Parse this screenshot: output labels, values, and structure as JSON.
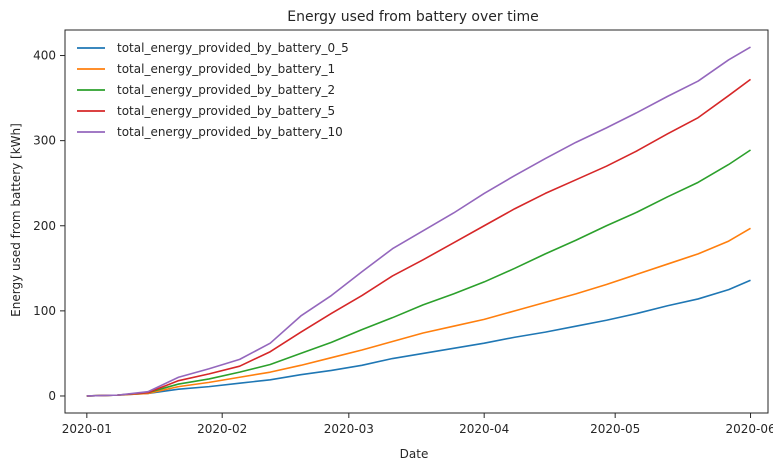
{
  "chart_data": {
    "type": "line",
    "title": "Energy used from battery over time",
    "xlabel": "Date",
    "ylabel": "Energy used from battery [kWh]",
    "x_ticks": [
      "2020-01",
      "2020-02",
      "2020-03",
      "2020-04",
      "2020-05",
      "2020-06"
    ],
    "y_ticks": [
      0,
      100,
      200,
      300,
      400
    ],
    "xlim": [
      "2019-12-27",
      "2020-06-05"
    ],
    "ylim": [
      -20,
      430
    ],
    "grid": false,
    "legend_position": "top-left",
    "x": [
      "2020-01-01",
      "2020-01-08",
      "2020-01-15",
      "2020-01-22",
      "2020-01-29",
      "2020-02-05",
      "2020-02-12",
      "2020-02-19",
      "2020-02-26",
      "2020-03-04",
      "2020-03-11",
      "2020-03-18",
      "2020-03-25",
      "2020-04-01",
      "2020-04-08",
      "2020-04-15",
      "2020-04-22",
      "2020-04-29",
      "2020-05-06",
      "2020-05-13",
      "2020-05-20",
      "2020-05-27",
      "2020-06-01"
    ],
    "series": [
      {
        "name": "total_energy_provided_by_battery_0_5",
        "color": "#1f77b4",
        "values": [
          0,
          1,
          3,
          8,
          11,
          15,
          19,
          25,
          30,
          36,
          44,
          50,
          56,
          62,
          69,
          75,
          82,
          89,
          97,
          106,
          114,
          125,
          136
        ]
      },
      {
        "name": "total_energy_provided_by_battery_1",
        "color": "#ff7f0e",
        "values": [
          0,
          1,
          3,
          11,
          16,
          22,
          28,
          36,
          45,
          54,
          64,
          74,
          82,
          90,
          100,
          110,
          120,
          131,
          143,
          155,
          167,
          182,
          197
        ]
      },
      {
        "name": "total_energy_provided_by_battery_2",
        "color": "#2ca02c",
        "values": [
          0,
          1,
          4,
          14,
          20,
          28,
          37,
          50,
          63,
          78,
          92,
          107,
          120,
          134,
          150,
          167,
          183,
          200,
          216,
          234,
          251,
          272,
          289
        ]
      },
      {
        "name": "total_energy_provided_by_battery_5",
        "color": "#d62728",
        "values": [
          0,
          1,
          4,
          18,
          26,
          35,
          52,
          75,
          97,
          118,
          141,
          160,
          180,
          200,
          220,
          238,
          254,
          270,
          288,
          308,
          327,
          353,
          372
        ]
      },
      {
        "name": "total_energy_provided_by_battery_10",
        "color": "#9467bd",
        "values": [
          0,
          1,
          5,
          22,
          32,
          43,
          62,
          94,
          118,
          146,
          173,
          194,
          215,
          238,
          259,
          279,
          298,
          315,
          333,
          352,
          370,
          395,
          410
        ]
      }
    ]
  }
}
